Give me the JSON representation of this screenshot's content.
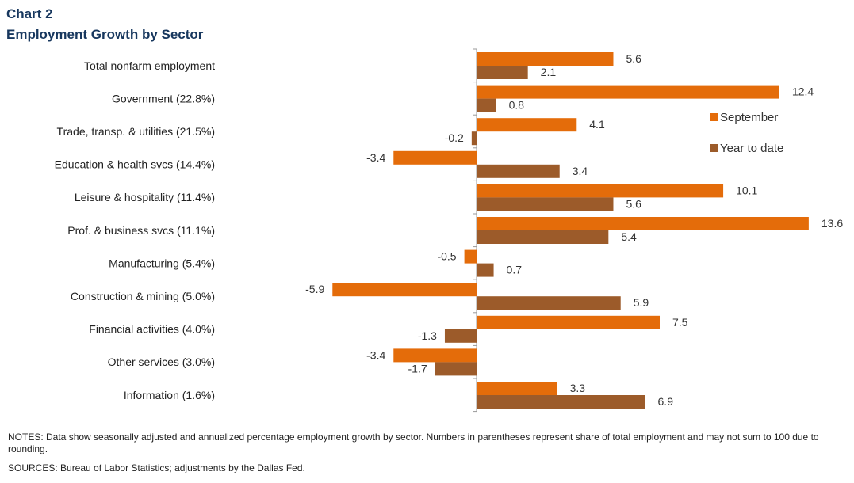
{
  "header": {
    "chart_number": "Chart 2",
    "title": "Employment  Growth by Sector"
  },
  "chart_data": {
    "type": "bar",
    "orientation": "horizontal",
    "categories": [
      "Total nonfarm employment",
      "Government (22.8%)",
      "Trade, transp. & utilities (21.5%)",
      "Education & health svcs (14.4%)",
      "Leisure & hospitality (11.4%)",
      "Prof. & business svcs (11.1%)",
      "Manufacturing (5.4%)",
      "Construction & mining (5.0%)",
      "Financial activities (4.0%)",
      "Other services (3.0%)",
      "Information (1.6%)"
    ],
    "series": [
      {
        "name": "September",
        "color": "#e46c0a",
        "values": [
          5.6,
          12.4,
          4.1,
          -3.4,
          10.1,
          13.6,
          -0.5,
          -5.9,
          7.5,
          -3.4,
          3.3
        ]
      },
      {
        "name": "Year to date",
        "color": "#9c5b2a",
        "values": [
          2.1,
          0.8,
          -0.2,
          3.4,
          5.6,
          5.4,
          0.7,
          5.9,
          -1.3,
          -1.7,
          6.9
        ]
      }
    ],
    "xlim": [
      -5.9,
      13.6
    ],
    "grid": false,
    "legend_position": "right"
  },
  "footer": {
    "notes": "NOTES:  Data show seasonally adjusted and annualized percentage employment  growth by sector. Numbers in parentheses represent share of total employment and may not sum to 100 due to rounding.",
    "sources": "SOURCES:  Bureau of Labor Statistics;  adjustments  by the Dallas Fed."
  }
}
